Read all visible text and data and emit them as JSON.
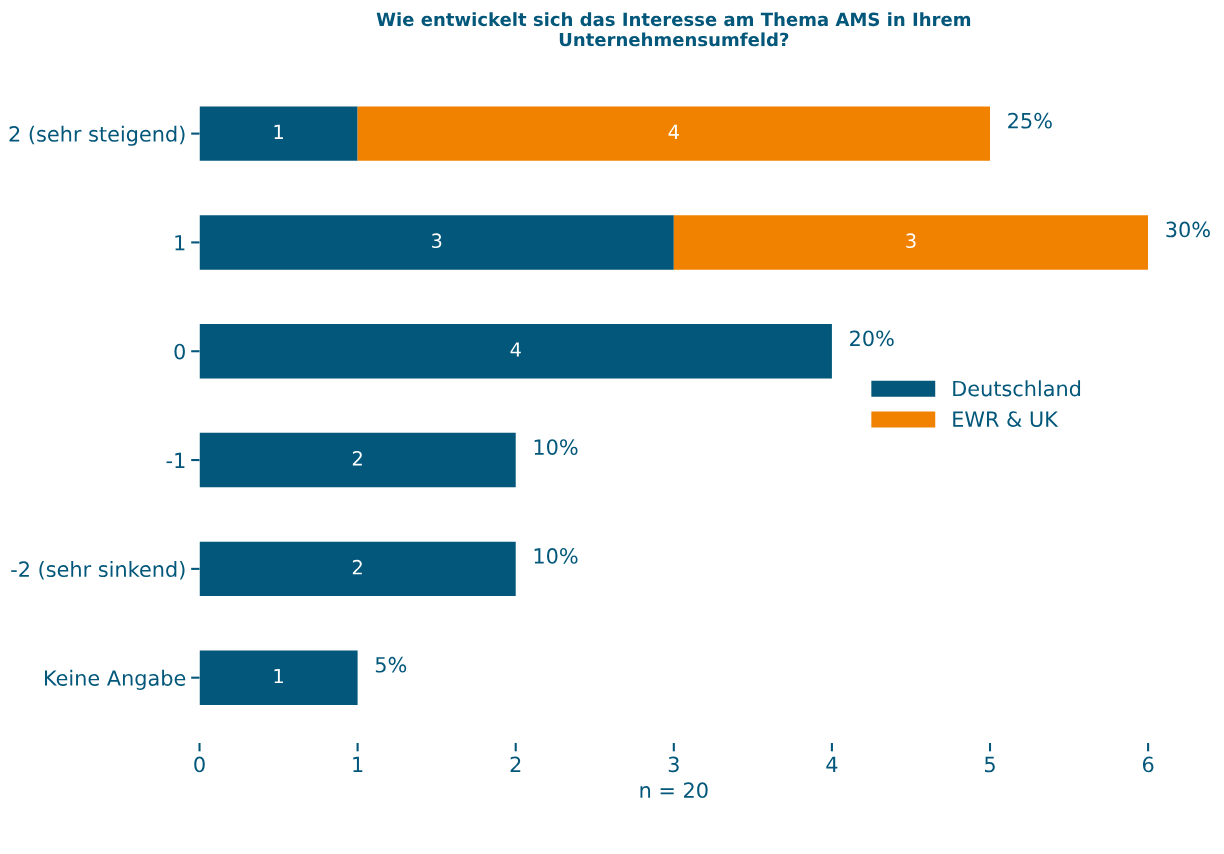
{
  "chart_data": {
    "type": "bar",
    "orientation": "horizontal",
    "stacked": true,
    "title": "Wie entwickelt sich das Interesse am Thema AMS in Ihrem\nUnternehmensumfeld?",
    "xlabel": "n = 20",
    "categories": [
      "2 (sehr steigend)",
      "1",
      "0",
      "-1",
      "-2 (sehr sinkend)",
      "Keine Angabe"
    ],
    "series": [
      {
        "name": "Deutschland",
        "color": "#02577a",
        "values": [
          1,
          3,
          4,
          2,
          2,
          1
        ]
      },
      {
        "name": "EWR & UK",
        "color": "#f08200",
        "values": [
          4,
          3,
          null,
          null,
          null,
          null
        ]
      }
    ],
    "xlim": [
      0,
      6
    ],
    "xticks": [
      0,
      1,
      2,
      3,
      4,
      5,
      6
    ],
    "data_labels": true,
    "annotations": [
      {
        "text": "25%",
        "x": 5,
        "y": "2 (sehr steigend)"
      },
      {
        "text": "30%",
        "x": 6,
        "y": "1"
      },
      {
        "text": "20%",
        "x": 4,
        "y": "0"
      },
      {
        "text": "10%",
        "x": 2,
        "y": "-1"
      },
      {
        "text": "10%",
        "x": 2,
        "y": "-2 (sehr sinkend)"
      },
      {
        "text": "5%",
        "x": 1,
        "y": "Keine Angabe"
      }
    ],
    "grid": false,
    "legend": "right"
  }
}
